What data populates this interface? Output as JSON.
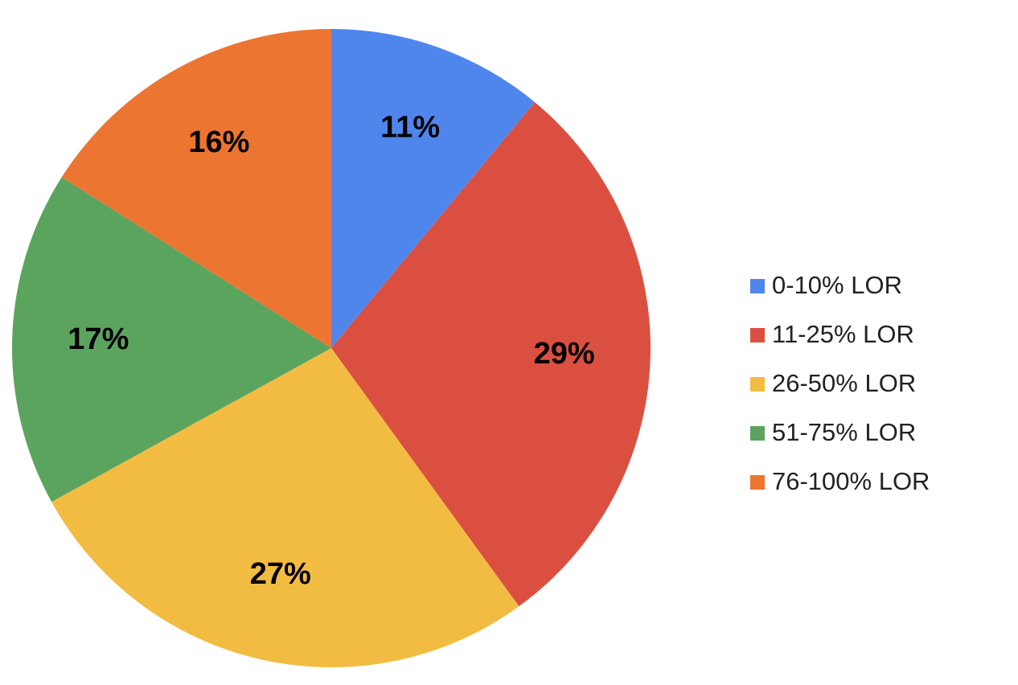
{
  "chart_data": {
    "type": "pie",
    "categories": [
      "0-10% LOR",
      "11-25% LOR",
      "26-50% LOR",
      "51-75% LOR",
      "76-100% LOR"
    ],
    "values": [
      11,
      29,
      27,
      17,
      16
    ],
    "value_labels": [
      "11%",
      "29%",
      "27%",
      "17%",
      "16%"
    ],
    "colors": [
      "#4f86ec",
      "#db4f41",
      "#f2bc42",
      "#5ba45e",
      "#ec7532"
    ],
    "legend": "right"
  }
}
